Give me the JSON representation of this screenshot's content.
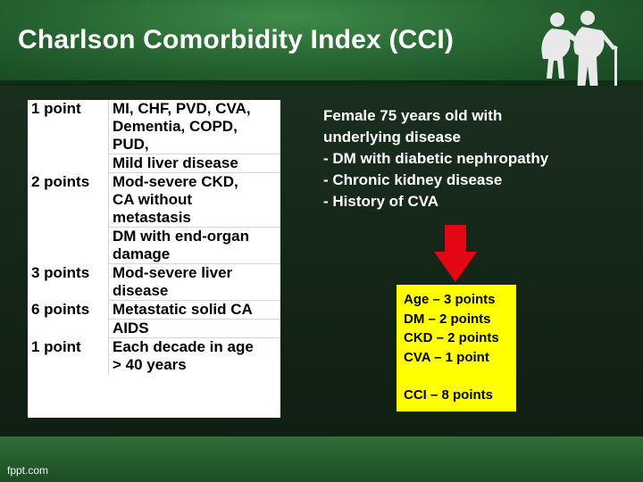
{
  "slide": {
    "title": "Charlson Comorbidity Index (CCI)",
    "footer": "fppt.com"
  },
  "cci_table": {
    "rows": [
      {
        "points": "1 point",
        "conditions": [
          "MI, CHF, PVD, CVA,",
          "Dementia, COPD,",
          "PUD,",
          "Mild liver disease"
        ]
      },
      {
        "points": "2 points",
        "conditions": [
          "Mod-severe CKD,",
          "CA without",
          "metastasis",
          "DM with end-organ",
          "damage"
        ]
      },
      {
        "points": "3 points",
        "conditions": [
          "Mod-severe liver",
          "disease"
        ]
      },
      {
        "points": "6 points",
        "conditions": [
          "Metastatic solid CA",
          "AIDS"
        ]
      },
      {
        "points": "1 point",
        "conditions": [
          "Each decade in age",
          "> 40 years"
        ]
      }
    ]
  },
  "case": {
    "lines": [
      "Female 75 years old with",
      "underlying disease",
      "-  DM with diabetic nephropathy",
      "-  Chronic kidney disease",
      "-  History of CVA"
    ]
  },
  "result": {
    "items": [
      "Age – 3 points",
      "DM – 2 points",
      "CKD – 2 points",
      "CVA – 1 point"
    ],
    "total": "CCI – 8 points"
  },
  "icons": {
    "logo": "elderly-couple-icon",
    "arrow": "down-arrow-icon"
  },
  "colors": {
    "header": "#2a6a35",
    "arrow": "#e30613",
    "highlight": "#ffff00"
  }
}
